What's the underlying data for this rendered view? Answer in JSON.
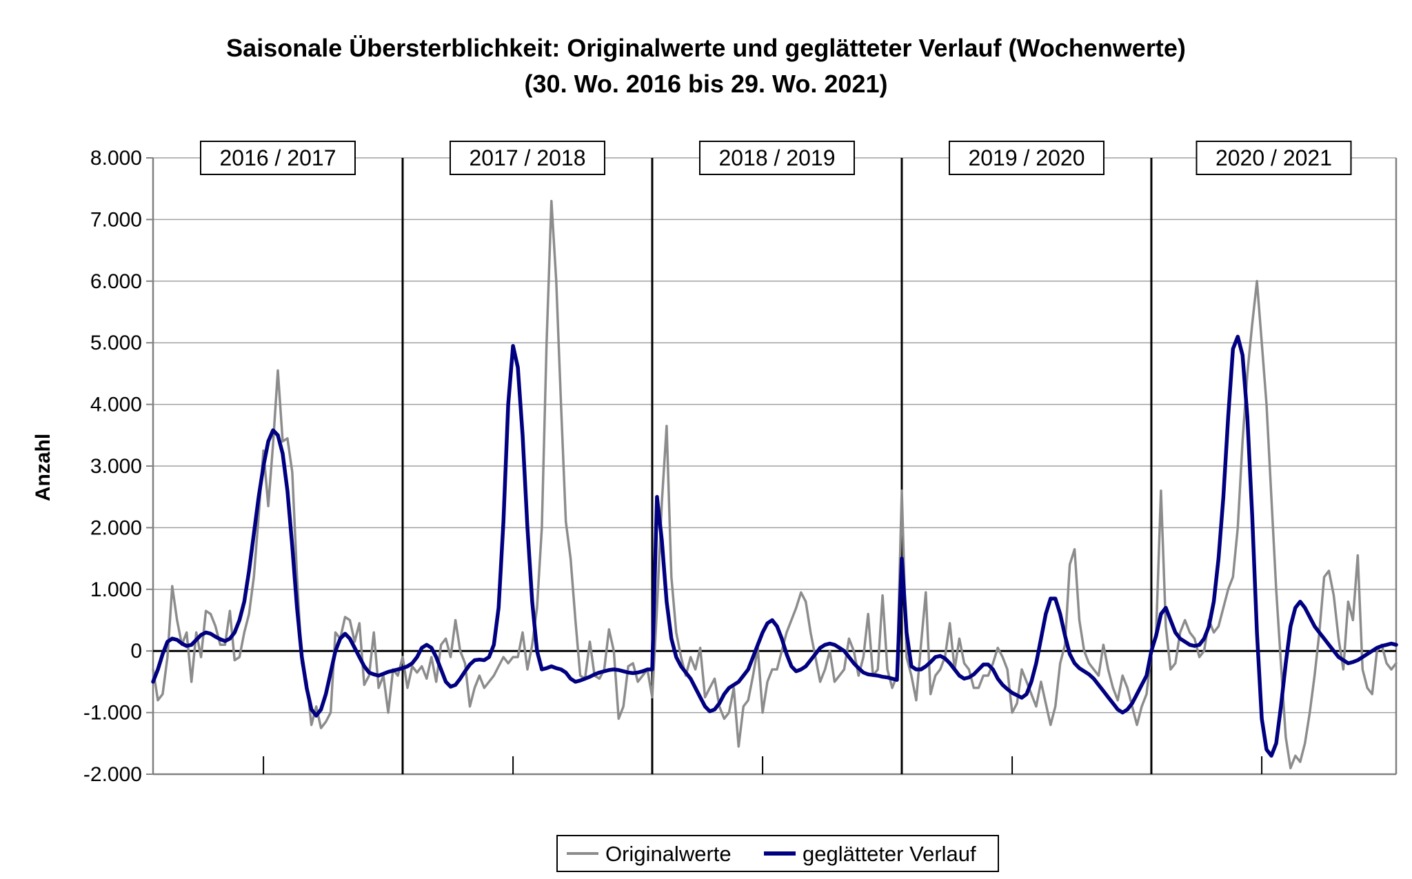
{
  "chart_data": {
    "type": "line",
    "title": "Saisonale Übersterblichkeit: Originalwerte und geglätteter Verlauf (Wochenwerte)",
    "subtitle": "(30. Wo. 2016 bis 29. Wo.  2021)",
    "xlabel": "",
    "ylabel": "Anzahl",
    "ylim": [
      -2000,
      8000
    ],
    "yticks": [
      -2000,
      -1000,
      0,
      1000,
      2000,
      3000,
      4000,
      5000,
      6000,
      7000,
      8000
    ],
    "ytick_labels": [
      "-2.000",
      "-1.000",
      "0",
      "1.000",
      "2.000",
      "3.000",
      "4.000",
      "5.000",
      "6.000",
      "7.000",
      "8.000"
    ],
    "grid": true,
    "legend_position": "bottom-center",
    "seasons": [
      "2016 / 2017",
      "2017 / 2018",
      "2018 / 2019",
      "2019 / 2020",
      "2020 / 2021"
    ],
    "weeks_per_season": 52,
    "series": [
      {
        "name": "Originalwerte",
        "color": "#8c8c8c",
        "values": [
          -300,
          -800,
          -700,
          -100,
          1050,
          500,
          100,
          300,
          -500,
          300,
          -100,
          650,
          600,
          400,
          100,
          100,
          650,
          -150,
          -100,
          300,
          600,
          1200,
          2200,
          3250,
          2350,
          3350,
          4550,
          3400,
          3450,
          2900,
          1200,
          -200,
          -500,
          -1200,
          -900,
          -1250,
          -1150,
          -1000,
          300,
          200,
          550,
          500,
          150,
          450,
          -550,
          -400,
          300,
          -600,
          -400,
          -1000,
          -300,
          -400
        ],
        "values_2": [
          -100,
          -600,
          -250,
          -350,
          -250,
          -450,
          -100,
          -500,
          100,
          200,
          -100,
          500,
          0,
          -200,
          -900,
          -600,
          -400,
          -600,
          -500,
          -400,
          -250,
          -100,
          -200,
          -100,
          -100,
          300,
          -300,
          100,
          700,
          2000,
          5000,
          7300,
          6000,
          4000,
          2100,
          1500,
          500,
          -400,
          -450,
          150,
          -400,
          -450,
          -300,
          350,
          0,
          -1100,
          -900,
          -250,
          -200,
          -500,
          -400,
          -300
        ],
        "values_3": [
          -750,
          700,
          2400,
          3650,
          1200,
          300,
          -100,
          -400,
          -100,
          -300,
          50,
          -750,
          -600,
          -450,
          -900,
          -1100,
          -1000,
          -600,
          -1550,
          -900,
          -800,
          -400,
          50,
          -1000,
          -500,
          -300,
          -300,
          0,
          300,
          500,
          700,
          950,
          800,
          300,
          -100,
          -500,
          -300,
          0,
          -500,
          -400,
          -300,
          200,
          0,
          -400,
          -100,
          600,
          -400,
          -300,
          900,
          -300,
          -600,
          -400
        ],
        "values_4": [
          2600,
          -100,
          -400,
          -800,
          100,
          950,
          -700,
          -400,
          -300,
          -100,
          450,
          -300,
          200,
          -200,
          -300,
          -600,
          -600,
          -400,
          -400,
          -200,
          50,
          -100,
          -300,
          -1000,
          -850,
          -300,
          -500,
          -700,
          -900,
          -500,
          -850,
          -1200,
          -900,
          -200,
          100,
          1400,
          1650,
          500,
          0,
          -200,
          -300,
          -400,
          100,
          -300,
          -600,
          -800,
          -400,
          -600,
          -900,
          -1200,
          -900,
          -700
        ],
        "values_5": [
          0,
          300,
          2600,
          400,
          -300,
          -200,
          300,
          500,
          300,
          200,
          -100,
          0,
          500,
          300,
          400,
          700,
          1000,
          1200,
          2000,
          3400,
          4500,
          5300,
          6000,
          5000,
          4000,
          2500,
          1000,
          -200,
          -1400,
          -1900,
          -1700,
          -1800,
          -1500,
          -1000,
          -400,
          300,
          1200,
          1300,
          900,
          200,
          -300,
          800,
          500,
          1550,
          -300,
          -600,
          -700,
          0,
          100,
          -200,
          -300,
          -200
        ]
      },
      {
        "name": "geglätteter Verlauf",
        "color": "#000080",
        "values": [
          -500,
          -300,
          -50,
          150,
          200,
          180,
          120,
          80,
          100,
          180,
          260,
          300,
          280,
          230,
          190,
          160,
          200,
          300,
          500,
          800,
          1300,
          1900,
          2500,
          3000,
          3400,
          3580,
          3500,
          3200,
          2600,
          1700,
          700,
          -100,
          -600,
          -950,
          -1050,
          -950,
          -700,
          -350,
          0,
          200,
          280,
          200,
          50,
          -100,
          -250,
          -350,
          -380,
          -400,
          -370,
          -340,
          -320,
          -300
        ],
        "values_2": [
          -280,
          -250,
          -200,
          -100,
          50,
          100,
          50,
          -100,
          -300,
          -500,
          -580,
          -550,
          -450,
          -330,
          -220,
          -150,
          -140,
          -150,
          -100,
          100,
          700,
          2100,
          4000,
          4950,
          4600,
          3500,
          2000,
          800,
          0,
          -300,
          -280,
          -250,
          -280,
          -300,
          -350,
          -450,
          -500,
          -480,
          -450,
          -420,
          -380,
          -350,
          -330,
          -310,
          -300,
          -310,
          -330,
          -350,
          -360,
          -350,
          -330,
          -300
        ],
        "values_3": [
          -300,
          2500,
          1800,
          800,
          200,
          -100,
          -250,
          -350,
          -450,
          -600,
          -750,
          -900,
          -980,
          -950,
          -850,
          -700,
          -600,
          -550,
          -500,
          -400,
          -300,
          -100,
          100,
          300,
          450,
          500,
          400,
          200,
          -50,
          -250,
          -330,
          -300,
          -250,
          -150,
          -50,
          50,
          100,
          120,
          100,
          50,
          0,
          -100,
          -200,
          -280,
          -350,
          -380,
          -390,
          -400,
          -420,
          -430,
          -450,
          -470
        ],
        "values_4": [
          1500,
          300,
          -250,
          -300,
          -300,
          -250,
          -180,
          -100,
          -80,
          -120,
          -200,
          -300,
          -400,
          -450,
          -430,
          -380,
          -300,
          -220,
          -220,
          -300,
          -450,
          -550,
          -620,
          -680,
          -720,
          -760,
          -700,
          -500,
          -200,
          200,
          600,
          850,
          850,
          600,
          250,
          -50,
          -200,
          -280,
          -330,
          -380,
          -450,
          -550,
          -650,
          -750,
          -850,
          -950,
          -1000,
          -950,
          -850,
          -700,
          -550,
          -400
        ],
        "values_5": [
          0,
          250,
          600,
          700,
          500,
          300,
          200,
          150,
          100,
          80,
          100,
          200,
          400,
          800,
          1500,
          2500,
          3800,
          4900,
          5100,
          4800,
          3800,
          2200,
          300,
          -1100,
          -1600,
          -1700,
          -1500,
          -900,
          -200,
          400,
          700,
          800,
          700,
          550,
          400,
          300,
          200,
          100,
          0,
          -100,
          -150,
          -200,
          -180,
          -150,
          -100,
          -50,
          0,
          50,
          80,
          100,
          120,
          100
        ]
      }
    ]
  },
  "legend": {
    "items": [
      {
        "label": "Originalwerte",
        "color": "#8c8c8c"
      },
      {
        "label": "geglätteter Verlauf",
        "color": "#000080"
      }
    ]
  }
}
